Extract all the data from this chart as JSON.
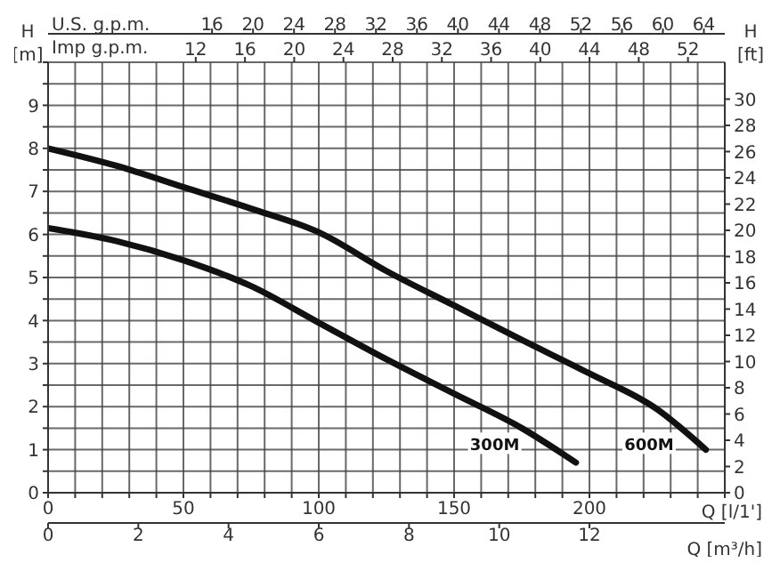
{
  "chart_data": {
    "type": "line",
    "xlabel": "Q [l/1']",
    "ylabel": "H [m]",
    "y2label": "H [ft]",
    "x2label": "U.S. g.p.m.",
    "xlim": [
      0,
      250
    ],
    "xticks": [
      0,
      {
        "value": 10,
        "label": null
      },
      {
        "value": 20,
        "label": null
      },
      {
        "value": 30,
        "label": null
      },
      {
        "value": 40,
        "label": null
      },
      50,
      {
        "value": 60,
        "label": null
      },
      {
        "value": 70,
        "label": null
      },
      {
        "value": 80,
        "label": null
      },
      {
        "value": 90,
        "label": null
      },
      100,
      {
        "value": 110,
        "label": null
      },
      {
        "value": 120,
        "label": null
      },
      {
        "value": 130,
        "label": null
      },
      {
        "value": 140,
        "label": null
      },
      150,
      {
        "value": 160,
        "label": null
      },
      {
        "value": 170,
        "label": null
      },
      {
        "value": 180,
        "label": null
      },
      {
        "value": 190,
        "label": null
      },
      200,
      {
        "value": 210,
        "label": null
      },
      {
        "value": 220,
        "label": null
      },
      {
        "value": 230,
        "label": null
      },
      {
        "value": 240,
        "label": null
      },
      {
        "value": 250,
        "label": null
      }
    ],
    "ylim": [
      0,
      10
    ],
    "yticks": [
      0,
      {
        "value": 0.5,
        "label": null
      },
      1,
      {
        "value": 1.5,
        "label": null
      },
      2,
      {
        "value": 2.5,
        "label": null
      },
      3,
      {
        "value": 3.5,
        "label": null
      },
      4,
      {
        "value": 4.5,
        "label": null
      },
      5,
      {
        "value": 5.5,
        "label": null
      },
      6,
      {
        "value": 6.5,
        "label": null
      },
      7,
      {
        "value": 7.5,
        "label": null
      },
      8,
      {
        "value": 8.5,
        "label": null
      },
      9,
      {
        "value": 9.5,
        "label": null
      },
      {
        "value": 10,
        "label": null
      }
    ],
    "y2lim": [
      0,
      32.81
    ],
    "y2ticks": [
      0,
      2,
      4,
      6,
      8,
      10,
      12,
      14,
      16,
      18,
      20,
      22,
      24,
      26,
      28,
      30
    ],
    "x2lim": [
      0,
      66.04
    ],
    "x2ticks": [
      16,
      20,
      24,
      28,
      32,
      36,
      40,
      44,
      48,
      52,
      56,
      60,
      64
    ],
    "grid": true,
    "marker": "none",
    "line_style": "solid",
    "series": [
      {
        "color": "#111111",
        "x": [
          0,
          25,
          50,
          75,
          100,
          125,
          150,
          175,
          200,
          225,
          243
        ],
        "values": [
          8.0,
          7.6,
          7.1,
          6.6,
          6.05,
          5.15,
          4.35,
          3.55,
          2.77,
          1.94,
          1.0
        ]
      },
      {
        "color": "#111111",
        "x": [
          0,
          25,
          50,
          75,
          100,
          125,
          150,
          175,
          195
        ],
        "values": [
          6.15,
          5.85,
          5.4,
          4.8,
          3.95,
          3.1,
          2.3,
          1.5,
          0.7
        ]
      }
    ],
    "annotations": [
      {
        "text": "300M",
        "x": 165,
        "y": 1.15
      },
      {
        "text": "600M",
        "x": 222,
        "y": 1.15
      },
      "Imp g.p.m.",
      "12",
      "16",
      "20",
      "24",
      "28",
      "32",
      "36",
      "40",
      "44",
      "48",
      "52",
      "Q [m³/h]",
      "0",
      "2",
      "4",
      "6",
      "8",
      "10",
      "12"
    ]
  }
}
